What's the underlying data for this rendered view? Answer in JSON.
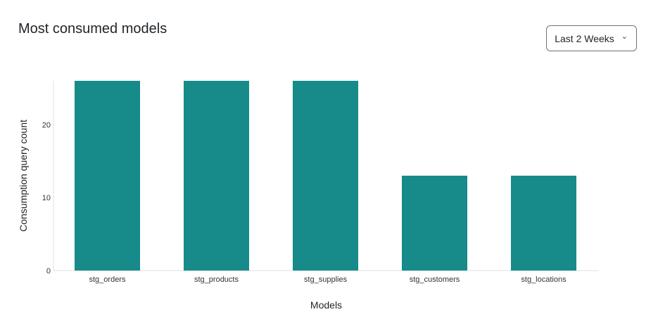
{
  "header": {
    "title": "Most consumed models"
  },
  "range_select": {
    "value": "Last 2 Weeks",
    "icon": "chevron-down-icon"
  },
  "chart_data": {
    "type": "bar",
    "title": "",
    "xlabel": "Models",
    "ylabel": "Consumption query count",
    "categories": [
      "stg_orders",
      "stg_products",
      "stg_supplies",
      "stg_customers",
      "stg_locations"
    ],
    "values": [
      26,
      26,
      26,
      13,
      13
    ],
    "ylim": [
      0,
      26
    ],
    "yticks": [
      0,
      10,
      20
    ],
    "grid": false,
    "bar_color": "#178a8a"
  }
}
